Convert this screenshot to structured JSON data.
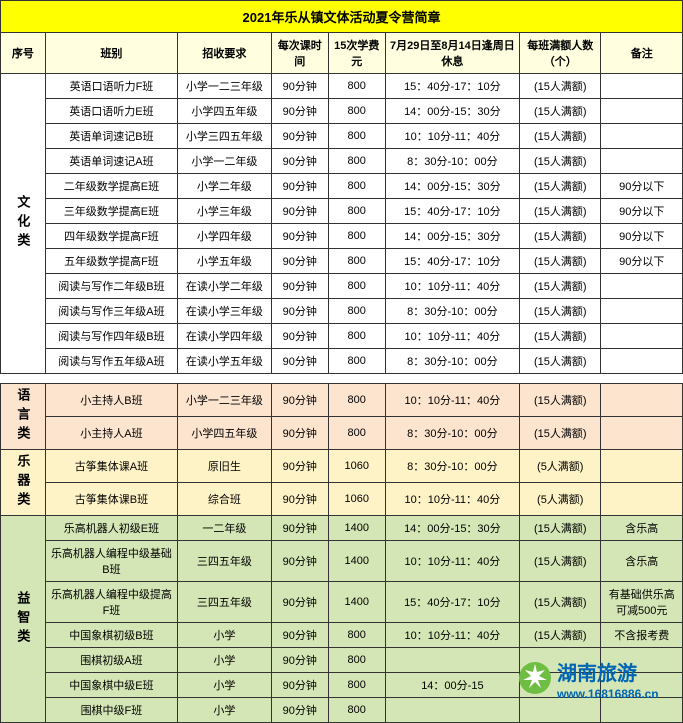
{
  "title": "2021年乐从镇文体活动夏令营简章",
  "headers": {
    "seq": "序号",
    "class": "班别",
    "req": "招收要求",
    "dur": "每次课时间",
    "fee": "15次学费元",
    "time": "7月29日至8月14日逢周日休息",
    "cap": "每班满额人数（个）",
    "note": "备注"
  },
  "cat1": {
    "label": "文化类"
  },
  "rows1": [
    {
      "class": "英语口语听力F班",
      "req": "小学一二三年级",
      "dur": "90分钟",
      "fee": "800",
      "time": "15：40分-17：10分",
      "cap": "(15人满额)",
      "note": ""
    },
    {
      "class": "英语口语听力E班",
      "req": "小学四五年级",
      "dur": "90分钟",
      "fee": "800",
      "time": "14：00分-15：30分",
      "cap": "(15人满额)",
      "note": ""
    },
    {
      "class": "英语单词速记B班",
      "req": "小学三四五年级",
      "dur": "90分钟",
      "fee": "800",
      "time": "10：10分-11：40分",
      "cap": "(15人满额)",
      "note": ""
    },
    {
      "class": "英语单词速记A班",
      "req": "小学一二年级",
      "dur": "90分钟",
      "fee": "800",
      "time": "8：30分-10：00分",
      "cap": "(15人满额)",
      "note": ""
    },
    {
      "class": "二年级数学提高E班",
      "req": "小学二年级",
      "dur": "90分钟",
      "fee": "800",
      "time": "14：00分-15：30分",
      "cap": "(15人满额)",
      "note": "90分以下"
    },
    {
      "class": "三年级数学提高E班",
      "req": "小学三年级",
      "dur": "90分钟",
      "fee": "800",
      "time": "15：40分-17：10分",
      "cap": "(15人满额)",
      "note": "90分以下"
    },
    {
      "class": "四年级数学提高F班",
      "req": "小学四年级",
      "dur": "90分钟",
      "fee": "800",
      "time": "14：00分-15：30分",
      "cap": "(15人满额)",
      "note": "90分以下"
    },
    {
      "class": "五年级数学提高F班",
      "req": "小学五年级",
      "dur": "90分钟",
      "fee": "800",
      "time": "15：40分-17：10分",
      "cap": "(15人满额)",
      "note": "90分以下"
    },
    {
      "class": "阅读与写作二年级B班",
      "req": "在读小学二年级",
      "dur": "90分钟",
      "fee": "800",
      "time": "10：10分-11：40分",
      "cap": "(15人满额)",
      "note": ""
    },
    {
      "class": "阅读与写作三年级A班",
      "req": "在读小学三年级",
      "dur": "90分钟",
      "fee": "800",
      "time": "8：30分-10：00分",
      "cap": "(15人满额)",
      "note": ""
    },
    {
      "class": "阅读与写作四年级B班",
      "req": "在读小学四年级",
      "dur": "90分钟",
      "fee": "800",
      "time": "10：10分-11：40分",
      "cap": "(15人满额)",
      "note": ""
    },
    {
      "class": "阅读与写作五年级A班",
      "req": "在读小学五年级",
      "dur": "90分钟",
      "fee": "800",
      "time": "8：30分-10：00分",
      "cap": "(15人满额)",
      "note": ""
    }
  ],
  "cat2": {
    "label": "语言类"
  },
  "rows2": [
    {
      "class": "小主持人B班",
      "req": "小学一二三年级",
      "dur": "90分钟",
      "fee": "800",
      "time": "10：10分-11：40分",
      "cap": "(15人满额)",
      "note": ""
    },
    {
      "class": "小主持人A班",
      "req": "小学四五年级",
      "dur": "90分钟",
      "fee": "800",
      "time": "8：30分-10：00分",
      "cap": "(15人满额)",
      "note": ""
    }
  ],
  "cat3": {
    "label": "乐器类"
  },
  "rows3": [
    {
      "class": "古筝集体课A班",
      "req": "原旧生",
      "dur": "90分钟",
      "fee": "1060",
      "time": "8：30分-10：00分",
      "cap": "(5人满额)",
      "note": ""
    },
    {
      "class": "古筝集体课B班",
      "req": "综合班",
      "dur": "90分钟",
      "fee": "1060",
      "time": "10：10分-11：40分",
      "cap": "(5人满额)",
      "note": ""
    }
  ],
  "cat4": {
    "label": "益智类"
  },
  "rows4": [
    {
      "class": "乐高机器人初级E班",
      "req": "一二年级",
      "dur": "90分钟",
      "fee": "1400",
      "time": "14：00分-15：30分",
      "cap": "(15人满额)",
      "note": "含乐高"
    },
    {
      "class": "乐高机器人编程中级基础B班",
      "req": "三四五年级",
      "dur": "90分钟",
      "fee": "1400",
      "time": "10：10分-11：40分",
      "cap": "(15人满额)",
      "note": "含乐高"
    },
    {
      "class": "乐高机器人编程中级提高F班",
      "req": "三四五年级",
      "dur": "90分钟",
      "fee": "1400",
      "time": "15：40分-17：10分",
      "cap": "(15人满额)",
      "note": "有基础供乐高可减500元"
    },
    {
      "class": "中国象棋初级B班",
      "req": "小学",
      "dur": "90分钟",
      "fee": "800",
      "time": "10：10分-11：40分",
      "cap": "(15人满额)",
      "note": "不含报考费"
    },
    {
      "class": "围棋初级A班",
      "req": "小学",
      "dur": "90分钟",
      "fee": "800",
      "time": "",
      "cap": "",
      "note": ""
    },
    {
      "class": "中国象棋中级E班",
      "req": "小学",
      "dur": "90分钟",
      "fee": "800",
      "time": "14：00分-15",
      "cap": "",
      "note": ""
    },
    {
      "class": "围棋中级F班",
      "req": "小学",
      "dur": "90分钟",
      "fee": "800",
      "time": "",
      "cap": "",
      "note": ""
    }
  ],
  "logo": {
    "text1": "湖南旅游",
    "text2": "www.16816886.cn",
    "color1": "#0066b3",
    "color2": "#6fbe44"
  }
}
